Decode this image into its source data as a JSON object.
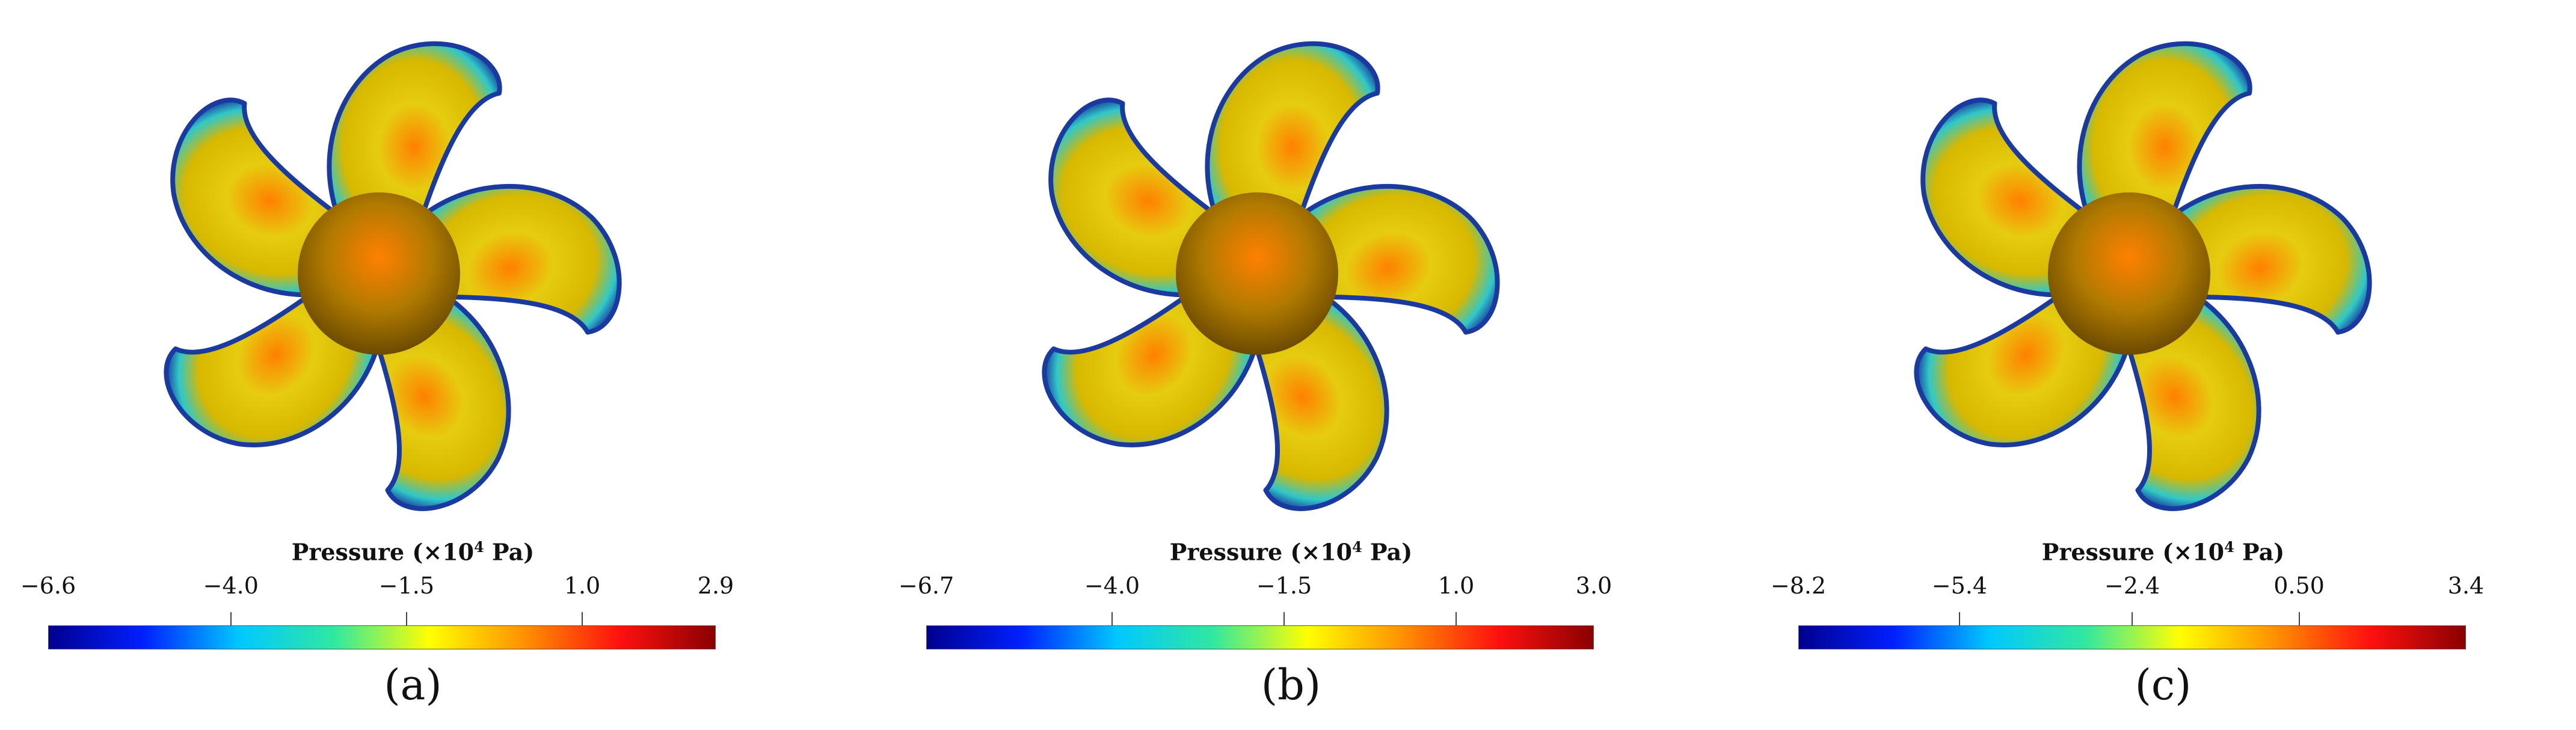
{
  "colors": {
    "colormap": [
      "#00008f",
      "#0020ff",
      "#00c8ff",
      "#30e8a0",
      "#ffff00",
      "#ff9000",
      "#ff1010",
      "#8b0000"
    ],
    "blade_base": "#d8b800",
    "blade_mid": "#e6cc10",
    "blade_edge": "#30c8c8",
    "blade_rim": "#1a3aa0",
    "hub_center": "#ff8000",
    "hub_dark": "#6b4a00"
  },
  "panels": [
    {
      "label": "(a)",
      "colorbar": {
        "title": "Pressure (×10",
        "title_exp": "4",
        "title_unit": " Pa)",
        "min": -6.6,
        "max": 2.9,
        "ticks": [
          {
            "label": "−6.6",
            "value": -6.6
          },
          {
            "label": "−4.0",
            "value": -4.0
          },
          {
            "label": "−1.5",
            "value": -1.5
          },
          {
            "label": "1.0",
            "value": 1.0
          },
          {
            "label": "2.9",
            "value": 2.9
          }
        ]
      }
    },
    {
      "label": "(b)",
      "colorbar": {
        "title": "Pressure (×10",
        "title_exp": "4",
        "title_unit": " Pa)",
        "min": -6.7,
        "max": 3.0,
        "ticks": [
          {
            "label": "−6.7",
            "value": -6.7
          },
          {
            "label": "−4.0",
            "value": -4.0
          },
          {
            "label": "−1.5",
            "value": -1.5
          },
          {
            "label": "1.0",
            "value": 1.0
          },
          {
            "label": "3.0",
            "value": 3.0
          }
        ]
      }
    },
    {
      "label": "(c)",
      "colorbar": {
        "title": "Pressure (×10",
        "title_exp": "4",
        "title_unit": " Pa)",
        "min": -8.2,
        "max": 3.4,
        "ticks": [
          {
            "label": "−8.2",
            "value": -8.2
          },
          {
            "label": "−5.4",
            "value": -5.4
          },
          {
            "label": "−2.4",
            "value": -2.4
          },
          {
            "label": "0.50",
            "value": 0.5
          },
          {
            "label": "3.4",
            "value": 3.4
          }
        ]
      }
    }
  ]
}
